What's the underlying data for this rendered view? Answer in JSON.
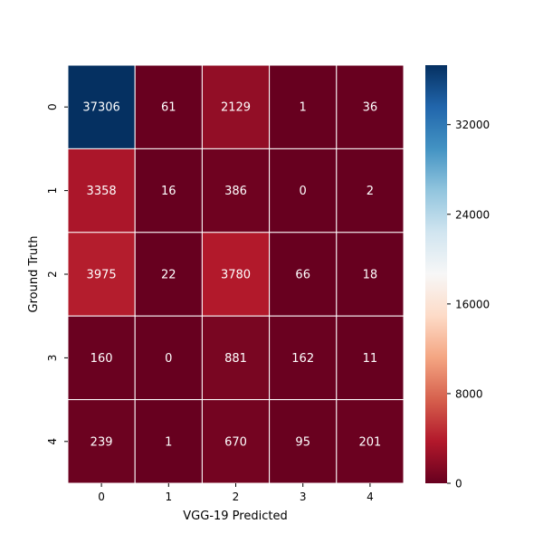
{
  "chart_data": {
    "type": "heatmap",
    "title": "",
    "xlabel": "VGG-19 Predicted",
    "ylabel": "Ground Truth",
    "x_categories": [
      "0",
      "1",
      "2",
      "3",
      "4"
    ],
    "y_categories": [
      "0",
      "1",
      "2",
      "3",
      "4"
    ],
    "matrix": [
      [
        37306,
        61,
        2129,
        1,
        36
      ],
      [
        3358,
        16,
        386,
        0,
        2
      ],
      [
        3975,
        22,
        3780,
        66,
        18
      ],
      [
        160,
        0,
        881,
        162,
        11
      ],
      [
        239,
        1,
        670,
        95,
        201
      ]
    ],
    "colormap": "RdBu",
    "vmin": 0,
    "vmax": 37306,
    "colorbar_ticks": [
      0,
      8000,
      16000,
      24000,
      32000
    ],
    "colorbar_tick_labels": [
      "0",
      "8000",
      "16000",
      "24000",
      "32000"
    ],
    "annotation_text_color": "#ffffff",
    "cell_border_color": "#ffffff"
  }
}
